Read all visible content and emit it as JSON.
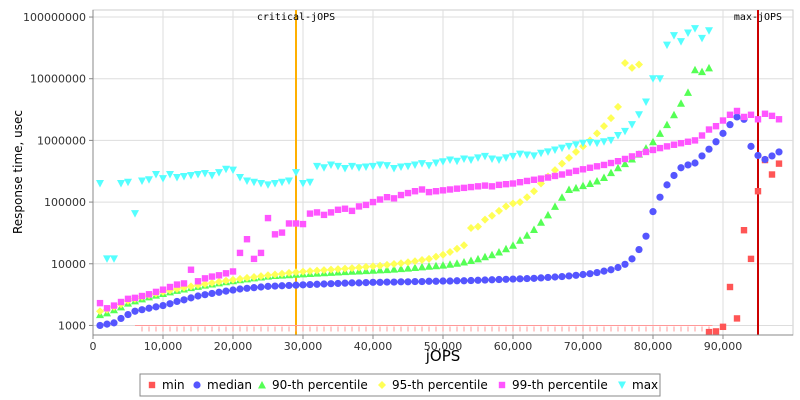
{
  "chart_data": {
    "type": "scatter",
    "xlabel": "jOPS",
    "ylabel": "Response time, usec",
    "xlim": [
      0,
      100000
    ],
    "ylim": [
      700,
      130000000
    ],
    "yscale": "log",
    "x_ticks": [
      0,
      10000,
      20000,
      30000,
      40000,
      50000,
      60000,
      70000,
      80000,
      90000
    ],
    "x_tick_labels": [
      "0",
      "10,000",
      "20,000",
      "30,000",
      "40,000",
      "50,000",
      "60,000",
      "70,000",
      "80,000",
      "90,000"
    ],
    "y_ticks": [
      1000,
      10000,
      100000,
      1000000,
      10000000,
      100000000
    ],
    "y_tick_labels": [
      "1000",
      "10000",
      "100000",
      "1000000",
      "10000000",
      "100000000"
    ],
    "grid": true,
    "legend_position": "bottom",
    "markers": [
      {
        "label": "critical-jOPS",
        "x": 29000,
        "color": "#ffb000"
      },
      {
        "label": "max-jOPS",
        "x": 95000,
        "color": "#cc0000"
      }
    ],
    "series": [
      {
        "name": "min",
        "color": "#ff5555",
        "shape": "square"
      },
      {
        "name": "median",
        "color": "#5555ff",
        "shape": "circle"
      },
      {
        "name": "90-th percentile",
        "color": "#55ff55",
        "shape": "triangle-up"
      },
      {
        "name": "95-th percentile",
        "color": "#ffff55",
        "shape": "diamond"
      },
      {
        "name": "99-th percentile",
        "color": "#ff55ff",
        "shape": "square"
      },
      {
        "name": "max",
        "color": "#55ffff",
        "shape": "triangle-down"
      }
    ],
    "x": [
      1000,
      2000,
      3000,
      4000,
      5000,
      6000,
      7000,
      8000,
      9000,
      10000,
      11000,
      12000,
      13000,
      14000,
      15000,
      16000,
      17000,
      18000,
      19000,
      20000,
      21000,
      22000,
      23000,
      24000,
      25000,
      26000,
      27000,
      28000,
      29000,
      30000,
      31000,
      32000,
      33000,
      34000,
      35000,
      36000,
      37000,
      38000,
      39000,
      40000,
      41000,
      42000,
      43000,
      44000,
      45000,
      46000,
      47000,
      48000,
      49000,
      50000,
      51000,
      52000,
      53000,
      54000,
      55000,
      56000,
      57000,
      58000,
      59000,
      60000,
      61000,
      62000,
      63000,
      64000,
      65000,
      66000,
      67000,
      68000,
      69000,
      70000,
      71000,
      72000,
      73000,
      74000,
      75000,
      76000,
      77000,
      78000,
      79000,
      80000,
      81000,
      82000,
      83000,
      84000,
      85000,
      86000,
      87000,
      88000,
      89000,
      90000,
      91000,
      92000,
      93000,
      94000,
      95000,
      96000,
      97000,
      98000,
      99000,
      100000
    ],
    "values": {
      "min": [
        null,
        null,
        null,
        null,
        null,
        null,
        null,
        null,
        null,
        null,
        null,
        null,
        null,
        null,
        null,
        null,
        null,
        null,
        null,
        null,
        null,
        null,
        null,
        null,
        null,
        null,
        null,
        null,
        null,
        null,
        null,
        null,
        null,
        null,
        null,
        null,
        null,
        null,
        null,
        null,
        null,
        null,
        null,
        null,
        null,
        null,
        null,
        null,
        null,
        null,
        null,
        null,
        null,
        null,
        null,
        null,
        null,
        null,
        null,
        null,
        null,
        null,
        null,
        null,
        null,
        null,
        null,
        null,
        null,
        null,
        null,
        null,
        null,
        null,
        null,
        null,
        null,
        null,
        null,
        null,
        null,
        null,
        null,
        null,
        null,
        null,
        null,
        780,
        800,
        950,
        4200,
        1300,
        35000,
        12000,
        150000,
        480000,
        280000,
        420000,
        null,
        null
      ],
      "median": [
        1000,
        1050,
        1100,
        1300,
        1500,
        1700,
        1800,
        1900,
        2000,
        2100,
        2250,
        2450,
        2600,
        2800,
        3000,
        3150,
        3300,
        3450,
        3600,
        3750,
        3900,
        4000,
        4100,
        4200,
        4300,
        4350,
        4400,
        4450,
        4500,
        4550,
        4600,
        4650,
        4700,
        4750,
        4800,
        4850,
        4900,
        4900,
        4950,
        5000,
        5000,
        5050,
        5050,
        5100,
        5100,
        5150,
        5150,
        5200,
        5200,
        5250,
        5250,
        5300,
        5300,
        5350,
        5400,
        5450,
        5500,
        5550,
        5600,
        5650,
        5700,
        5750,
        5800,
        5900,
        6000,
        6100,
        6200,
        6350,
        6500,
        6700,
        6900,
        7200,
        7600,
        8000,
        8700,
        9800,
        12000,
        17000,
        28000,
        70000,
        120000,
        190000,
        270000,
        360000,
        400000,
        430000,
        560000,
        720000,
        950000,
        1300000,
        1800000,
        2400000,
        2200000,
        800000,
        570000,
        490000,
        560000,
        650000,
        null,
        null
      ],
      "90-th percentile": [
        1500,
        1600,
        1800,
        2000,
        2300,
        2500,
        2700,
        2900,
        3100,
        3300,
        3500,
        3700,
        3900,
        4100,
        4300,
        4500,
        4700,
        4900,
        5100,
        5300,
        5500,
        5700,
        5900,
        6100,
        6300,
        6450,
        6550,
        6650,
        6750,
        6850,
        6950,
        7050,
        7150,
        7250,
        7350,
        7450,
        7550,
        7650,
        7750,
        7850,
        7950,
        8050,
        8200,
        8350,
        8500,
        8700,
        8900,
        9100,
        9300,
        9500,
        9800,
        10200,
        10700,
        11300,
        12000,
        13000,
        14000,
        15500,
        17500,
        20000,
        24000,
        29000,
        36000,
        47000,
        62000,
        85000,
        120000,
        160000,
        170000,
        185000,
        200000,
        220000,
        250000,
        300000,
        360000,
        420000,
        500000,
        600000,
        750000,
        950000,
        1300000,
        1800000,
        2600000,
        4000000,
        6000000,
        14000000,
        13000000,
        15000000,
        null,
        null,
        null,
        null,
        null,
        null,
        null,
        null,
        null,
        null,
        null,
        null
      ],
      "95-th percentile": [
        1700,
        1800,
        2000,
        2200,
        2500,
        2700,
        2900,
        3100,
        3300,
        3500,
        3700,
        3900,
        4100,
        4300,
        4500,
        4700,
        4900,
        5100,
        5300,
        5500,
        5700,
        5900,
        6100,
        6300,
        6500,
        6700,
        6900,
        7100,
        7300,
        7450,
        7600,
        7750,
        7900,
        8050,
        8200,
        8350,
        8500,
        8700,
        8900,
        9100,
        9300,
        9600,
        9900,
        10200,
        10600,
        11000,
        11500,
        12000,
        13000,
        14000,
        15500,
        17500,
        20000,
        38000,
        40000,
        52000,
        60000,
        72000,
        85000,
        95000,
        100000,
        120000,
        150000,
        200000,
        260000,
        330000,
        420000,
        520000,
        650000,
        800000,
        1000000,
        1300000,
        1700000,
        2300000,
        3500000,
        18000000,
        15000000,
        17000000,
        null,
        null,
        null,
        null,
        null,
        null,
        null,
        null,
        null,
        null,
        null,
        null,
        null,
        null,
        null,
        null,
        null,
        null,
        null,
        null,
        null,
        null
      ],
      "99-th percentile": [
        2300,
        1900,
        2100,
        2400,
        2700,
        2800,
        3000,
        3200,
        3500,
        3800,
        4200,
        4600,
        4800,
        8000,
        5200,
        5800,
        6200,
        6500,
        7000,
        7500,
        15000,
        25000,
        12000,
        15000,
        55000,
        30000,
        32000,
        45000,
        45000,
        44000,
        65000,
        68000,
        62000,
        68000,
        75000,
        78000,
        72000,
        85000,
        90000,
        100000,
        110000,
        120000,
        115000,
        130000,
        140000,
        150000,
        160000,
        145000,
        150000,
        155000,
        160000,
        165000,
        170000,
        175000,
        180000,
        185000,
        180000,
        190000,
        195000,
        200000,
        210000,
        220000,
        230000,
        240000,
        250000,
        265000,
        280000,
        300000,
        320000,
        340000,
        360000,
        380000,
        400000,
        430000,
        460000,
        500000,
        550000,
        600000,
        650000,
        700000,
        750000,
        800000,
        850000,
        900000,
        950000,
        1000000,
        1200000,
        1500000,
        1700000,
        2100000,
        2600000,
        3000000,
        2400000,
        2600000,
        2200000,
        2700000,
        2500000,
        2200000,
        null,
        null
      ],
      "max": [
        200000,
        12000,
        12000,
        200000,
        210000,
        65000,
        220000,
        230000,
        280000,
        240000,
        280000,
        250000,
        260000,
        270000,
        280000,
        290000,
        270000,
        300000,
        340000,
        330000,
        250000,
        220000,
        210000,
        200000,
        190000,
        200000,
        210000,
        220000,
        300000,
        200000,
        210000,
        380000,
        360000,
        400000,
        380000,
        350000,
        380000,
        360000,
        370000,
        380000,
        400000,
        390000,
        350000,
        370000,
        380000,
        400000,
        420000,
        390000,
        430000,
        450000,
        480000,
        460000,
        500000,
        480000,
        520000,
        550000,
        500000,
        480000,
        520000,
        550000,
        600000,
        580000,
        560000,
        620000,
        650000,
        700000,
        750000,
        800000,
        850000,
        900000,
        920000,
        900000,
        950000,
        1000000,
        1200000,
        1400000,
        1800000,
        2600000,
        4200000,
        10000000,
        10000000,
        35000000,
        50000000,
        40000000,
        55000000,
        65000000,
        45000000,
        60000000,
        null,
        null,
        null,
        null,
        null,
        null,
        null,
        null,
        null,
        null,
        null,
        null
      ]
    }
  }
}
